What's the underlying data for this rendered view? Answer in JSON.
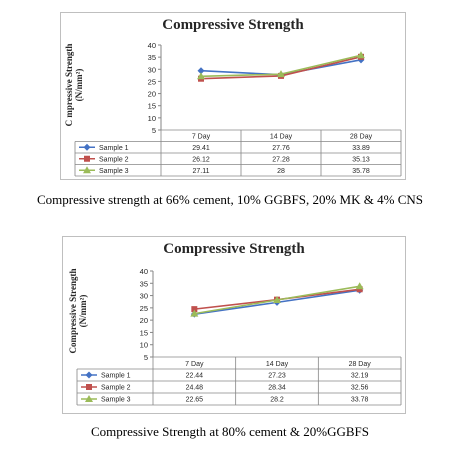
{
  "chart_data": [
    {
      "type": "line",
      "title": "Compressive Strength",
      "ylabel_main": "C  mpressive Strength",
      "ylabel_unit": "(N/mm²)",
      "categories": [
        "7 Day",
        "14 Day",
        "28 Day"
      ],
      "ylim": [
        5,
        40
      ],
      "yticks": [
        5,
        10,
        15,
        20,
        25,
        30,
        35,
        40
      ],
      "grid": false,
      "legend": "data-table",
      "series": [
        {
          "name": "Sample 1",
          "values": [
            29.41,
            27.76,
            33.89
          ],
          "labels": [
            "29.41",
            "27.76",
            "33.89"
          ],
          "color": "#4472c4",
          "marker": "diamond"
        },
        {
          "name": "Sample 2",
          "values": [
            26.12,
            27.28,
            35.13
          ],
          "labels": [
            "26.12",
            "27.28",
            "35.13"
          ],
          "color": "#c0504d",
          "marker": "square"
        },
        {
          "name": "Sample 3",
          "values": [
            27.11,
            28,
            35.78
          ],
          "labels": [
            "27.11",
            "28",
            "35.78"
          ],
          "color": "#9bbb59",
          "marker": "triangle"
        }
      ],
      "caption": "Compressive strength at 66% cement, 10% GGBFS, 20% MK & 4% CNS"
    },
    {
      "type": "line",
      "title": "Compressive Strength",
      "ylabel_main": "Compressive Strength",
      "ylabel_unit": "(N/mm²)",
      "categories": [
        "7 Day",
        "14 Day",
        "28 Day"
      ],
      "ylim": [
        5,
        40
      ],
      "yticks": [
        5,
        10,
        15,
        20,
        25,
        30,
        35,
        40
      ],
      "grid": false,
      "legend": "data-table",
      "series": [
        {
          "name": "Sample 1",
          "values": [
            22.44,
            27.23,
            32.19
          ],
          "labels": [
            "22.44",
            "27.23",
            "32.19"
          ],
          "color": "#4472c4",
          "marker": "diamond"
        },
        {
          "name": "Sample 2",
          "values": [
            24.48,
            28.34,
            32.56
          ],
          "labels": [
            "24.48",
            "28.34",
            "32.56"
          ],
          "color": "#c0504d",
          "marker": "square"
        },
        {
          "name": "Sample 3",
          "values": [
            22.65,
            28.2,
            33.78
          ],
          "labels": [
            "22.65",
            "28.2",
            "33.78"
          ],
          "color": "#9bbb59",
          "marker": "triangle"
        }
      ],
      "caption": "Compressive Strength at 80% cement & 20%GGBFS"
    }
  ]
}
